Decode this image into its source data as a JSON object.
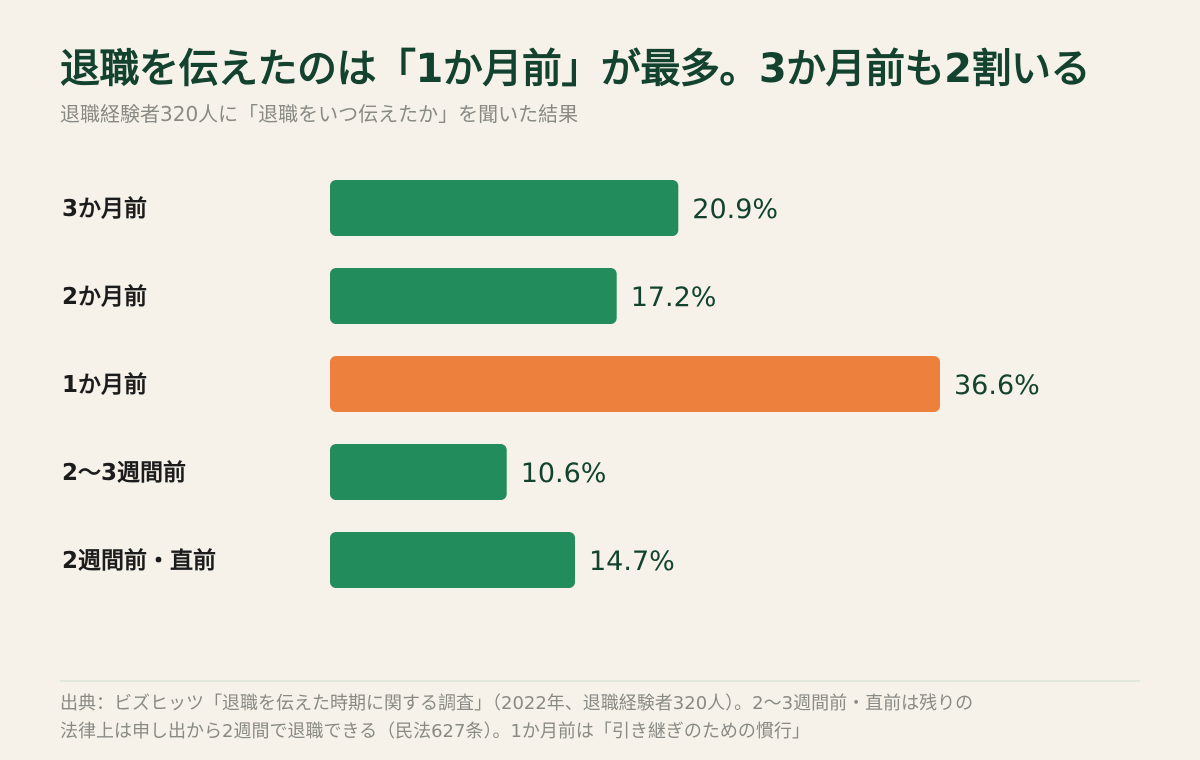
{
  "title": "退職を伝えたのは「1か月前」が最多。3か月前も2割いる",
  "subtitle": "退職経験者320人に「退職をいつ伝えたか」を聞いた結果",
  "footer": {
    "line1": "出典：ビズヒッツ「退職を伝えた時期に関する調査」（2022年、退職経験者320人）。2〜3週間前・直前は残りの",
    "line2": "法律上は申し出から2週間で退職できる（民法627条）。1か月前は「引き継ぎのための慣行」"
  },
  "colors": {
    "bar": "#228c5c",
    "highlight": "#ec803c",
    "label": "#1c1c1c",
    "value": "#13432e"
  },
  "chart_data": {
    "type": "bar",
    "orientation": "horizontal",
    "categories": [
      "3か月前",
      "2か月前",
      "1か月前",
      "2〜3週間前",
      "2週間前・直前"
    ],
    "values": [
      20.9,
      17.2,
      36.6,
      10.6,
      14.7
    ],
    "value_labels": [
      "20.9%",
      "17.2%",
      "36.6%",
      "10.6%",
      "14.7%"
    ],
    "highlight_index": 2,
    "unit": "%",
    "xlim": [
      0,
      38.4
    ],
    "grid": false,
    "legend": "none"
  }
}
